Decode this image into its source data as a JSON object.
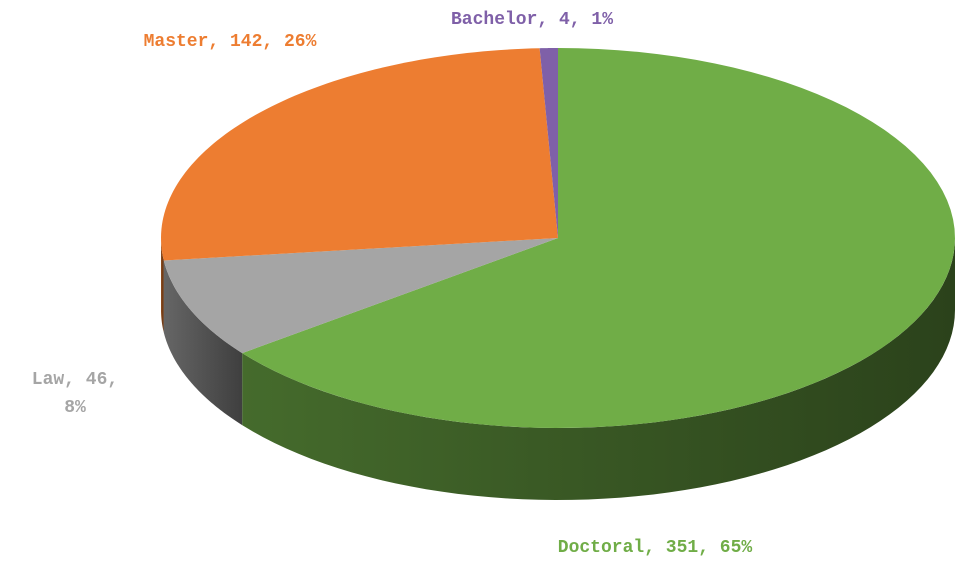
{
  "chart_data": {
    "type": "pie3d",
    "categories": [
      "Doctoral",
      "Law",
      "Master",
      "Bachelor"
    ],
    "values": [
      351,
      46,
      142,
      4
    ],
    "value_labels": [
      "Doctoral, 351, 65%",
      "Law, 46, 8%",
      "Master, 142, 26%",
      "Bachelor, 4, 1%"
    ],
    "colors": [
      "#70ad47",
      "#a5a5a5",
      "#ed7d31",
      "#7f60a8"
    ]
  }
}
